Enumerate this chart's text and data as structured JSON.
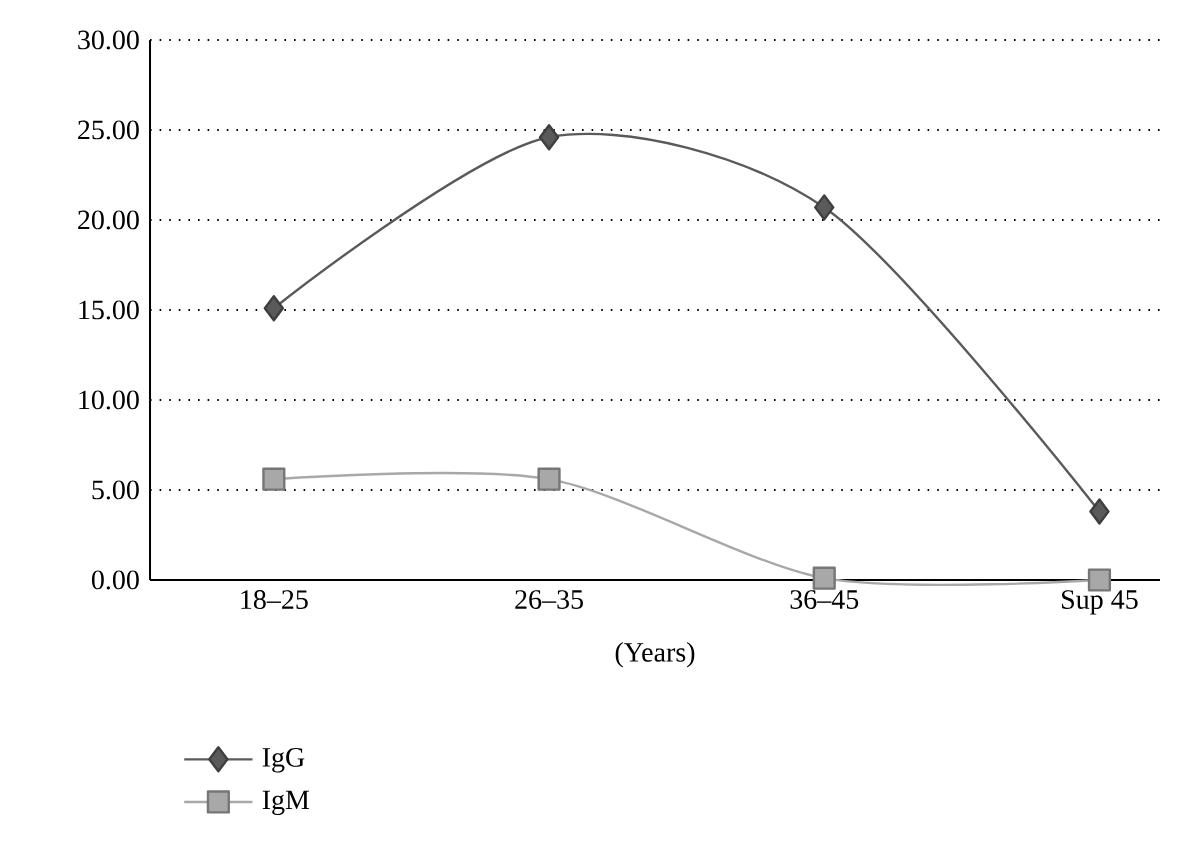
{
  "chart_data": {
    "type": "line",
    "xlabel": "(Years)",
    "categories": [
      "18–25",
      "26–35",
      "36–45",
      "Sup 45"
    ],
    "series": [
      {
        "name": "IgG",
        "color": "#5a5a5a",
        "marker": "diamond",
        "values": [
          15.1,
          24.6,
          20.7,
          3.8
        ]
      },
      {
        "name": "IgM",
        "color": "#a8a8a8",
        "marker": "square",
        "values": [
          5.6,
          5.6,
          0.1,
          0.0
        ]
      }
    ],
    "ylim": [
      0,
      30
    ],
    "yticks": [
      {
        "value": 0,
        "label": "0.00"
      },
      {
        "value": 5,
        "label": "5.00"
      },
      {
        "value": 10,
        "label": "10.00"
      },
      {
        "value": 15,
        "label": "15.00"
      },
      {
        "value": 20,
        "label": "20.00"
      },
      {
        "value": 25,
        "label": "25.00"
      },
      {
        "value": 30,
        "label": "30.00"
      }
    ],
    "grid": "y",
    "legend": "bottom left"
  }
}
